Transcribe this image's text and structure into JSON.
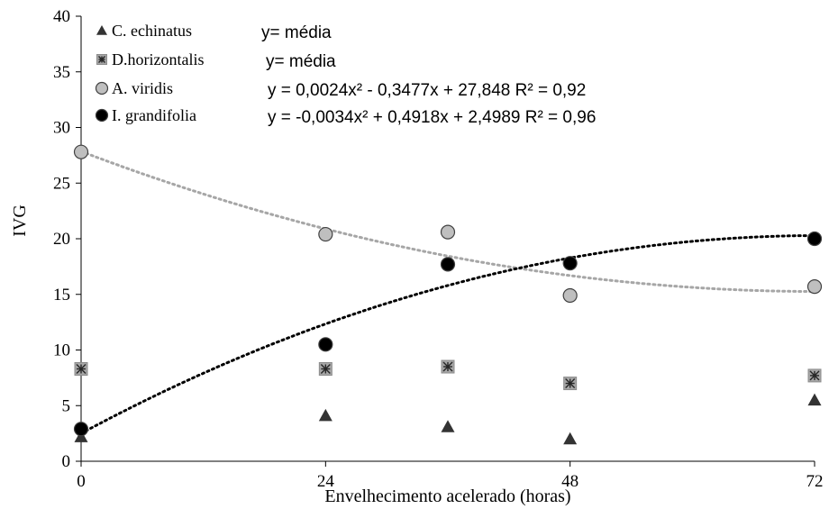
{
  "chart_data": {
    "type": "scatter",
    "xlabel": "Envelhecimento acelerado (horas)",
    "ylabel": "IVG",
    "xlim": [
      0,
      72
    ],
    "ylim": [
      0,
      40
    ],
    "xticks": [
      "0",
      "24",
      "48",
      "72"
    ],
    "xtick_values": [
      0,
      24,
      48,
      72
    ],
    "yticks": [
      "0",
      "5",
      "10",
      "15",
      "20",
      "25",
      "30",
      "35",
      "40"
    ],
    "ytick_values": [
      0,
      5,
      10,
      15,
      20,
      25,
      30,
      35,
      40
    ],
    "grid": false,
    "legend_position": "top-left",
    "series": [
      {
        "name": "C. echinatus",
        "marker": "triangle",
        "color": "#333333",
        "equation": "y= média",
        "x": [
          0,
          24,
          36,
          48,
          72
        ],
        "y": [
          2.2,
          4.1,
          3.1,
          2.0,
          5.5
        ]
      },
      {
        "name": "D.horizontalis",
        "marker": "square-star",
        "color": "#a6a6a6",
        "equation": "y= média",
        "x": [
          0,
          24,
          36,
          48,
          72
        ],
        "y": [
          8.3,
          8.3,
          8.5,
          7.0,
          7.7
        ]
      },
      {
        "name": "A. viridis",
        "marker": "circle",
        "color": "#bfbfbf",
        "equation": "y = 0,0024x² - 0,3477x + 27,848 R² = 0,92",
        "trend": {
          "a": 0.0024,
          "b": -0.3477,
          "c": 27.848,
          "color": "#a6a6a6"
        },
        "x": [
          0,
          24,
          36,
          48,
          72
        ],
        "y": [
          27.8,
          20.4,
          20.6,
          14.9,
          15.7
        ]
      },
      {
        "name": "I. grandifolia",
        "marker": "circle",
        "color": "#000000",
        "equation": "y = -0,0034x² + 0,4918x + 2,4989  R² = 0,96",
        "trend": {
          "a": -0.0034,
          "b": 0.4918,
          "c": 2.4989,
          "color": "#000000"
        },
        "x": [
          0,
          24,
          36,
          48,
          72
        ],
        "y": [
          2.9,
          10.5,
          17.7,
          17.8,
          20.0
        ]
      }
    ]
  }
}
